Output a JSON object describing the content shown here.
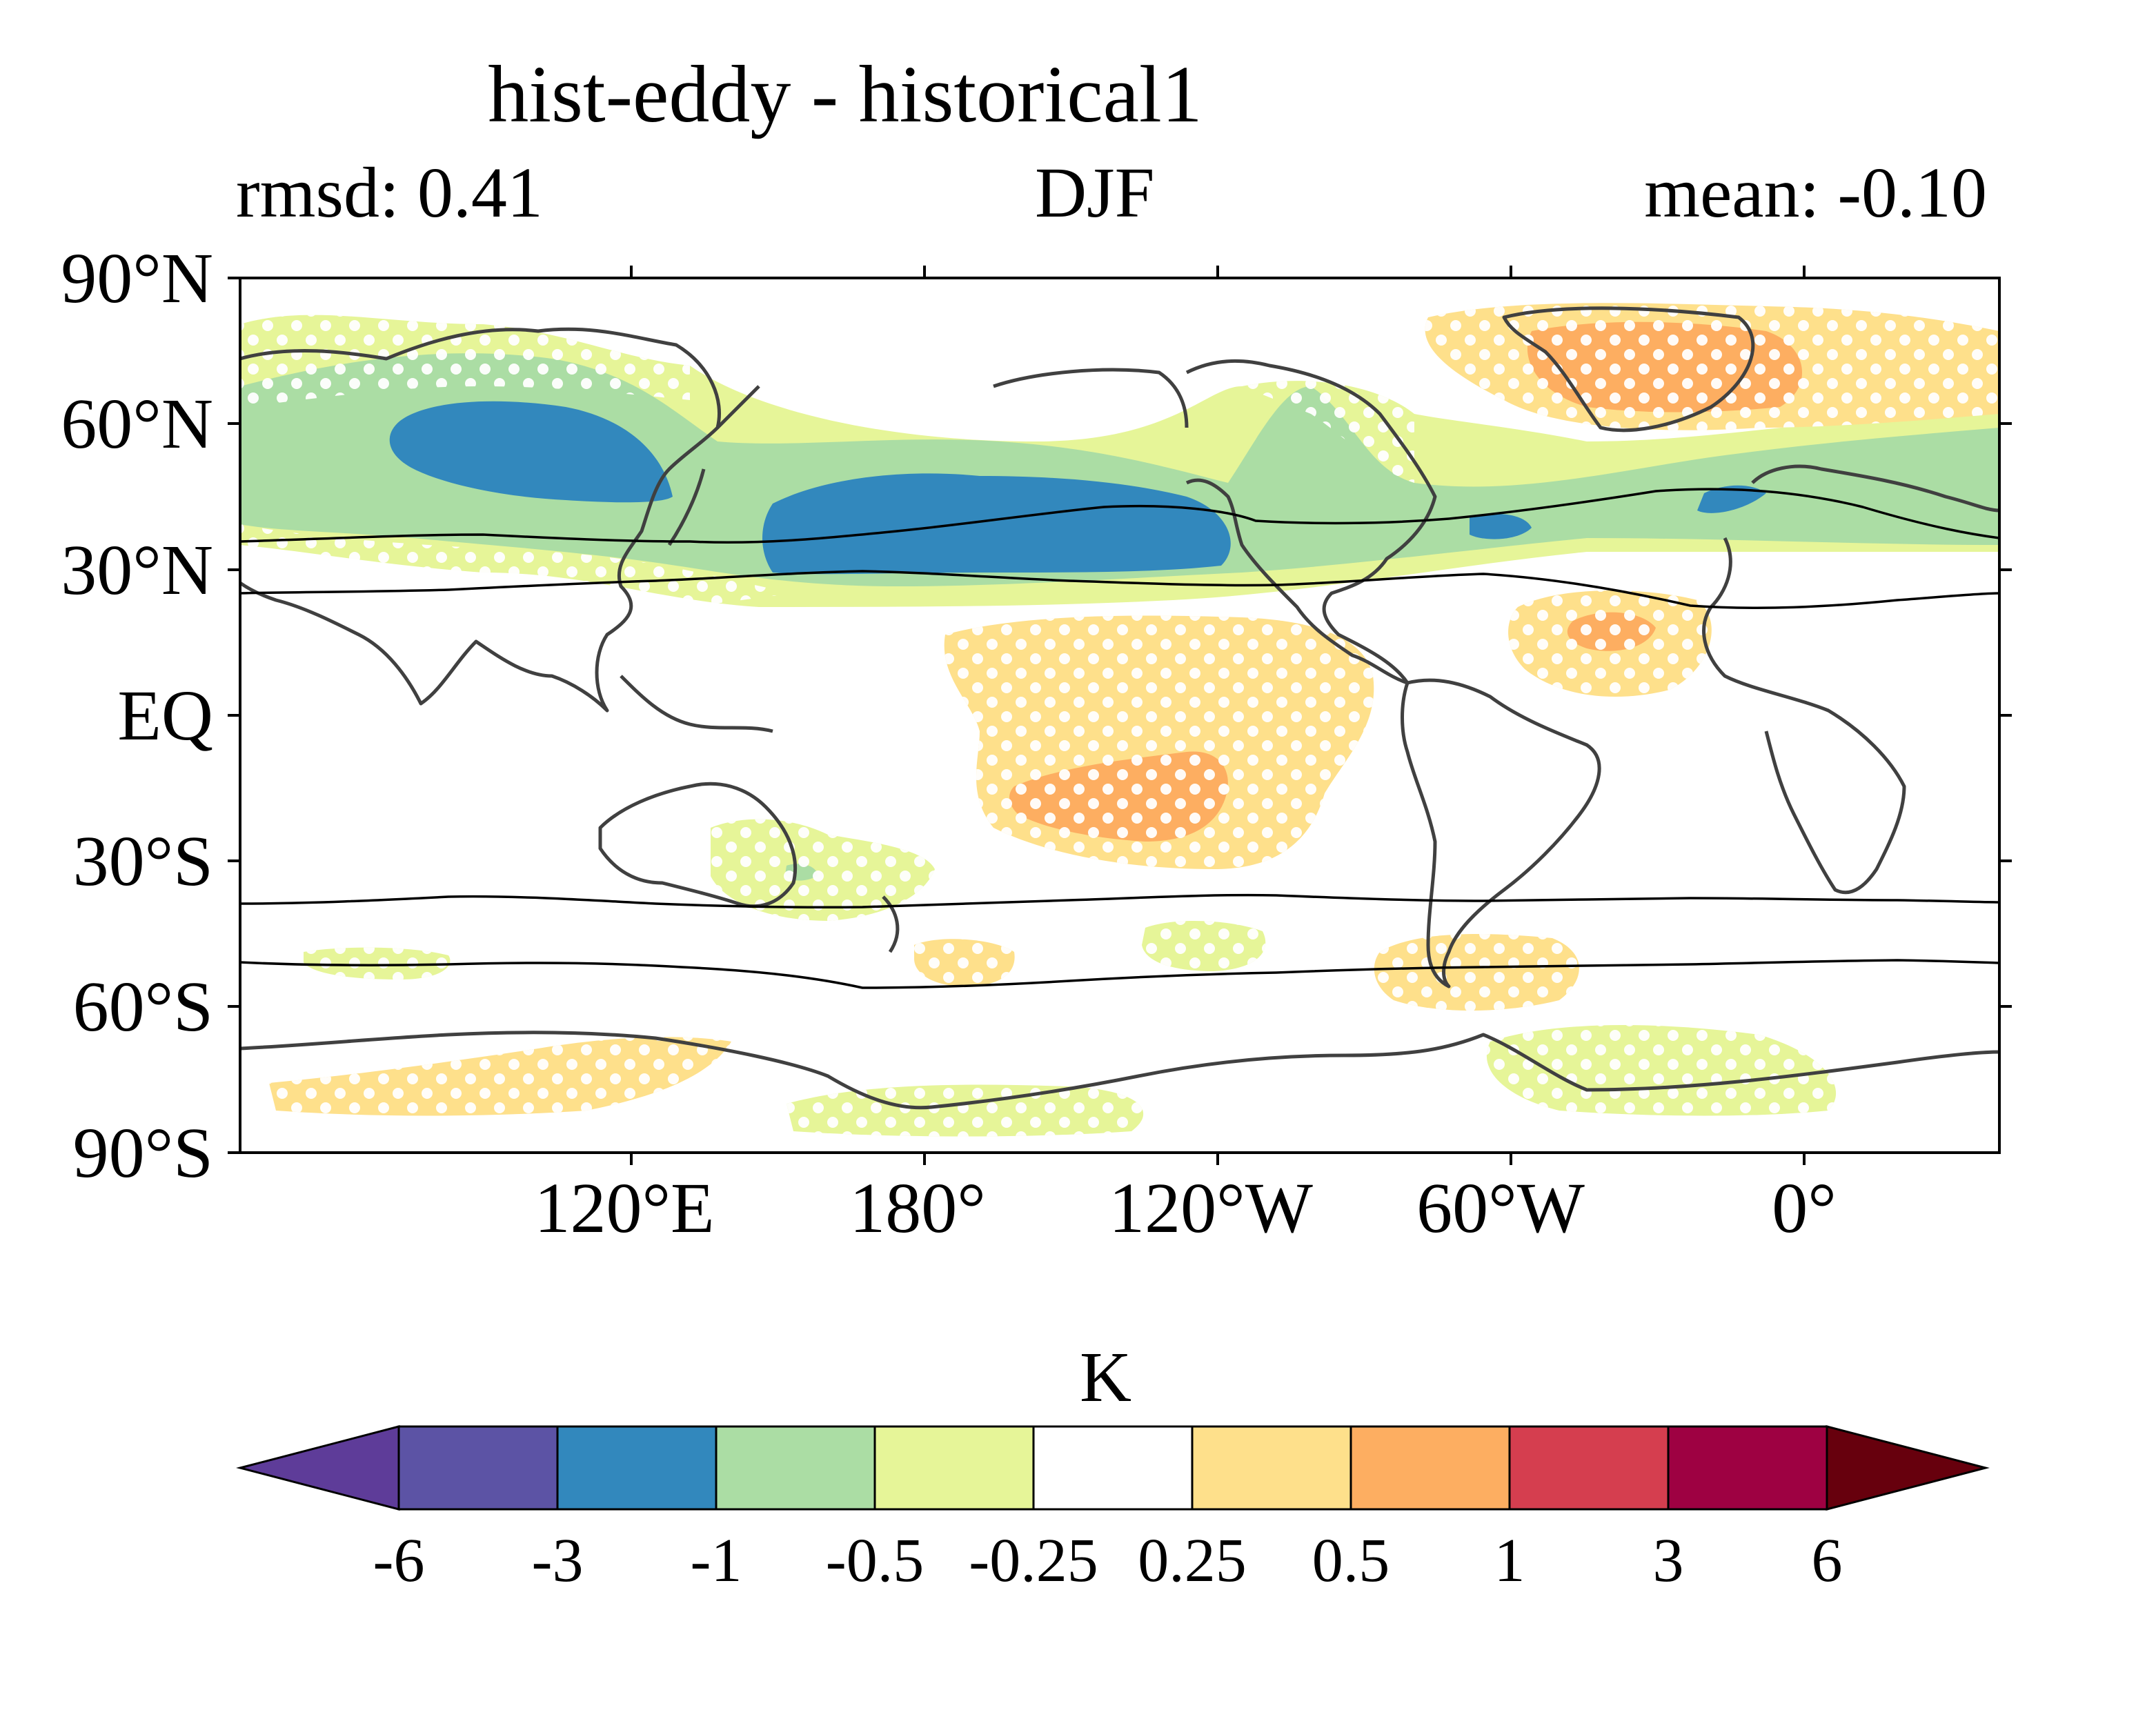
{
  "title": "hist-eddy - historical1",
  "subtitle_left": "rmsd: 0.41",
  "subtitle_center": "DJF",
  "subtitle_right": "mean: -0.10",
  "lat_labels": [
    "90°N",
    "60°N",
    "30°N",
    "EQ",
    "30°S",
    "60°S",
    "90°S"
  ],
  "lon_labels": [
    "120°E",
    "180°",
    "120°W",
    "60°W",
    "0°"
  ],
  "colorbar": {
    "unit": "K",
    "tick_labels": [
      "-6",
      "-3",
      "-1",
      "-0.5",
      "-0.25",
      "0.25",
      "0.5",
      "1",
      "3",
      "6"
    ],
    "colors": [
      "#5e3c99",
      "#5c53a5",
      "#3288bd",
      "#abdda4",
      "#e6f598",
      "#ffffff",
      "#fee08b",
      "#fdae61",
      "#d53e4f",
      "#9e0142",
      "#67000d"
    ]
  },
  "chart_data": {
    "type": "map",
    "projection": "equirectangular",
    "central_longitude": "40°E",
    "lat_range": [
      -90,
      90
    ],
    "lon_range": [
      40,
      400
    ],
    "stippling": "white dots mark significant regions",
    "anomaly_regions": [
      {
        "region": "Central Asia",
        "level": "-3 to -1",
        "color": "#3288bd"
      },
      {
        "region": "North Pacific",
        "level": "-3 to -1",
        "color": "#3288bd"
      },
      {
        "region": "Northern midlatitude belt",
        "level": "-1 to -0.25",
        "color": "#abdda4"
      },
      {
        "region": "Greenland / North Atlantic",
        "level": "0.25 to 1",
        "color": "#fdae61"
      },
      {
        "region": "Subtropical North Atlantic",
        "level": "0.25 to 1",
        "color": "#fdae61"
      },
      {
        "region": "Tropical South Pacific",
        "level": "0.25 to 1",
        "color": "#fdae61"
      },
      {
        "region": "Australia",
        "level": "-0.5 to -0.25",
        "color": "#e6f598"
      },
      {
        "region": "Antarctica",
        "level": "-0.25 to 0.5",
        "color": "#fee08b"
      }
    ]
  }
}
